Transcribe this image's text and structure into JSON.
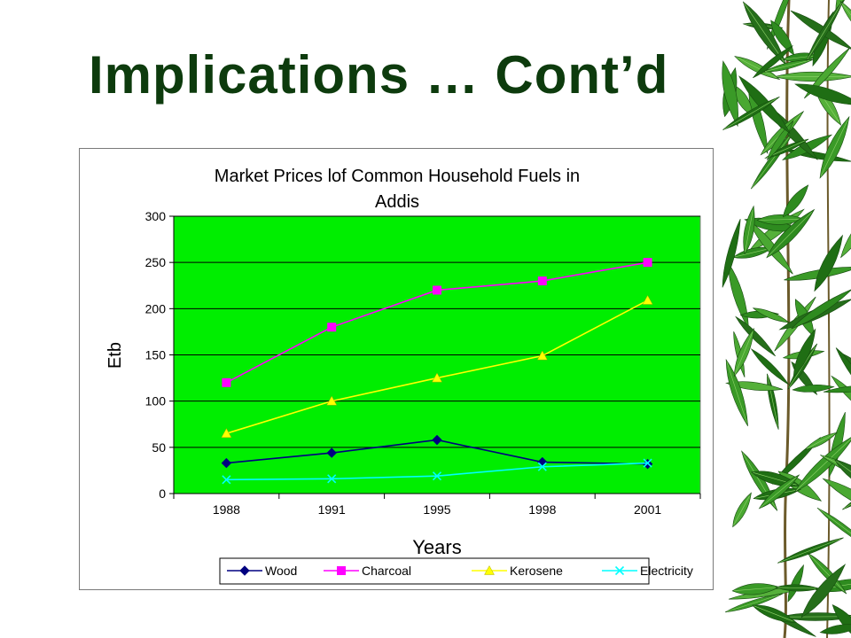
{
  "slide": {
    "title": "Implications … Cont’d",
    "title_color": "#0d3b0d",
    "decoration": "bamboo-leaves"
  },
  "chart_data": {
    "type": "line",
    "title_lines": [
      "Market Prices lof Common Household Fuels in",
      "Addis"
    ],
    "xlabel": "Years",
    "ylabel": "Etb",
    "categories": [
      "1988",
      "1991",
      "1995",
      "1998",
      "2001"
    ],
    "y_ticks": [
      "0",
      "50",
      "100",
      "150",
      "200",
      "250",
      "300"
    ],
    "ylim": [
      0,
      300
    ],
    "grid": true,
    "plot_background": "#00ee00",
    "legend_position": "bottom",
    "series": [
      {
        "name": "Wood",
        "color": "#000080",
        "marker": "diamond",
        "values": [
          33,
          44,
          58,
          34,
          32
        ]
      },
      {
        "name": "Charcoal",
        "color": "#ff00ff",
        "marker": "square",
        "values": [
          120,
          180,
          220,
          230,
          250
        ]
      },
      {
        "name": "Kerosene",
        "color": "#ffff00",
        "marker": "triangle",
        "values": [
          65,
          100,
          125,
          149,
          209
        ]
      },
      {
        "name": "Electricity",
        "color": "#00ffff",
        "marker": "x",
        "values": [
          15,
          16,
          19,
          29,
          33
        ]
      }
    ]
  }
}
